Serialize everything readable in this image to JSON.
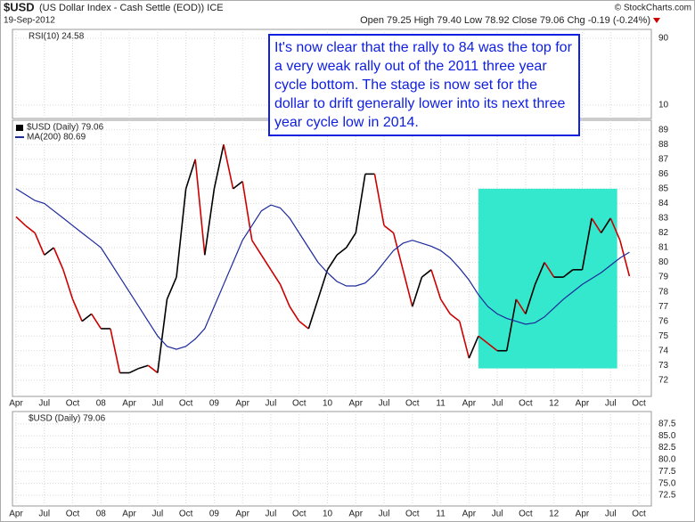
{
  "header": {
    "symbol": "$USD",
    "description": "(US Dollar Index - Cash Settle (EOD)) ICE",
    "date": "19-Sep-2012",
    "quote": "Open 79.25  High 79.40  Low 78.92  Close 79.06  Chg -0.19 (-0.24%)",
    "copyright": "© StockCharts.com"
  },
  "chart_data": [
    {
      "type": "line",
      "title": "RSI(10) 24.58",
      "ylim": [
        -6,
        100.7
      ],
      "yticks": [
        90,
        10
      ],
      "grid": true
    },
    {
      "type": "line",
      "categories": [
        "Apr",
        null,
        null,
        "Jul",
        null,
        null,
        "Oct",
        null,
        null,
        "08",
        null,
        null,
        "Apr",
        null,
        null,
        "Jul",
        null,
        null,
        "Oct",
        null,
        null,
        "09",
        null,
        null,
        "Apr",
        null,
        null,
        "Jul",
        null,
        null,
        "Oct",
        null,
        null,
        "10",
        null,
        null,
        "Apr",
        null,
        null,
        "Jul",
        null,
        null,
        "Oct",
        null,
        null,
        "11",
        null,
        null,
        "Apr",
        null,
        null,
        "Jul",
        null,
        null,
        "Oct",
        null,
        null,
        "12",
        null,
        null,
        "Apr",
        null,
        null,
        "Jul",
        null,
        null,
        "Oct"
      ],
      "series": [
        {
          "name": "$USD (Daily) 79.06",
          "color": "#000000",
          "down_color": "#cc0000",
          "values": [
            83.1,
            82.5,
            82.0,
            80.5,
            81.0,
            79.5,
            77.5,
            76.0,
            76.5,
            75.5,
            75.5,
            72.5,
            72.5,
            72.8,
            73.0,
            72.5,
            77.5,
            79.0,
            85.0,
            87.0,
            80.5,
            85.0,
            88.0,
            85.0,
            85.5,
            81.5,
            80.5,
            79.5,
            78.5,
            77.0,
            76.0,
            75.5,
            77.5,
            79.5,
            80.5,
            81.0,
            82.0,
            86.0,
            86.0,
            82.5,
            82.0,
            79.5,
            77.0,
            79.0,
            79.5,
            77.5,
            76.5,
            76.0,
            73.5,
            75.0,
            74.5,
            74.0,
            74.0,
            77.5,
            76.5,
            78.5,
            80.0,
            79.0,
            79.0,
            79.5,
            79.5,
            83.0,
            82.0,
            83.0,
            81.5,
            79.06,
            null
          ]
        },
        {
          "name": "MA(200) 80.69",
          "color": "#1c2a9c",
          "values": [
            85.0,
            84.6,
            84.2,
            84.0,
            83.5,
            83.0,
            82.5,
            82.0,
            81.5,
            81.0,
            80.0,
            79.0,
            78.0,
            77.0,
            76.0,
            75.0,
            74.3,
            74.1,
            74.3,
            74.8,
            75.5,
            77.0,
            78.5,
            80.0,
            81.5,
            82.5,
            83.5,
            83.9,
            83.7,
            83.0,
            82.0,
            81.0,
            80.0,
            79.3,
            78.7,
            78.4,
            78.4,
            78.6,
            79.2,
            80.0,
            80.8,
            81.3,
            81.5,
            81.3,
            81.1,
            80.8,
            80.3,
            79.6,
            78.8,
            77.8,
            77.0,
            76.5,
            76.2,
            76.0,
            75.8,
            75.9,
            76.3,
            76.9,
            77.5,
            78.0,
            78.5,
            78.9,
            79.3,
            79.8,
            80.3,
            80.69,
            null
          ]
        }
      ],
      "ylim": [
        70.9,
        89.65
      ],
      "yticks": [
        72,
        73,
        74,
        75,
        76,
        77,
        78,
        79,
        80,
        81,
        82,
        83,
        84,
        85,
        86,
        87,
        88,
        89
      ],
      "grid": true,
      "highlight": {
        "color": "#33e8cc",
        "x": [
          49,
          63.7
        ],
        "y": [
          72.8,
          85
        ]
      },
      "annotation": {
        "text": "It's now clear that the rally to 84 was the top for a very weak rally out of the 2011 three year cycle bottom. The stage is now set for the dollar to drift generally lower into its next three year cycle low in 2014.",
        "color": "#1020e0"
      }
    },
    {
      "type": "line",
      "title": "$USD (Daily) 79.06",
      "ylim": [
        70.25,
        90.1
      ],
      "yticks": [
        72.5,
        {
          "value": 75,
          "label": "75.0"
        },
        77.5,
        {
          "value": 80,
          "label": "80.0"
        },
        82.5,
        {
          "value": 85,
          "label": "85.0"
        },
        87.5
      ],
      "grid": true
    }
  ]
}
